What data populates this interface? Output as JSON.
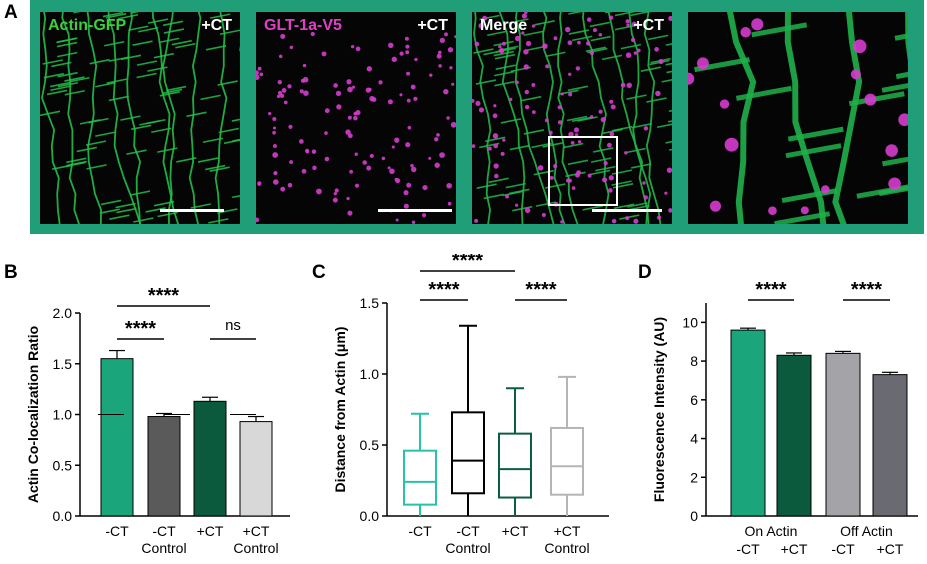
{
  "panels": {
    "A": "A",
    "B": "B",
    "C": "C",
    "D": "D"
  },
  "micrographs": [
    {
      "label": "Actin-GFP",
      "label_color": "#3ecf3e",
      "condition": "+CT"
    },
    {
      "label": "GLT-1a-V5",
      "label_color": "#e040c8",
      "condition": "+CT"
    },
    {
      "label": "Merge",
      "label_color": "#ffffff",
      "condition": "+CT"
    },
    {
      "label": "",
      "label_color": "#ffffff",
      "condition": ""
    }
  ],
  "colors": {
    "frame": "#1f9e78",
    "actin": "#22b04a",
    "glt": "#d63ccf",
    "teal": "#1aa57a",
    "darkgray": "#5a5a5a",
    "darkgreen": "#0b5a3e",
    "lightgray": "#d8d8d8",
    "midgray": "#a3a3a8",
    "slate": "#6a6a72",
    "cyan": "#27c2a8",
    "dkteal": "#0b5e45",
    "lgray": "#b5b5b5"
  },
  "chart_data": [
    {
      "type": "bar",
      "ylabel": "Actin Co-localization Ratio",
      "ylim": [
        0,
        2.0
      ],
      "yticks": [
        "0.0",
        "0.5",
        "1.0",
        "1.5",
        "2.0"
      ],
      "categories": [
        [
          "-CT",
          ""
        ],
        [
          "-CT",
          "Control"
        ],
        [
          "+CT",
          ""
        ],
        [
          "+CT",
          "Control"
        ]
      ],
      "values": [
        1.55,
        0.98,
        1.13,
        0.93
      ],
      "errors": [
        0.08,
        0.03,
        0.04,
        0.05
      ],
      "reference_line": 1.0,
      "significance": [
        {
          "from": 0,
          "to": 2,
          "label": "****"
        },
        {
          "from": 0,
          "to": 1,
          "label": "****"
        },
        {
          "from": 2,
          "to": 3,
          "label": "ns"
        }
      ]
    },
    {
      "type": "box",
      "ylabel": "Distance from Actin (μm)",
      "ylim": [
        0,
        1.5
      ],
      "yticks": [
        "0.0",
        "0.5",
        "1.0",
        "1.5"
      ],
      "categories": [
        [
          "-CT",
          ""
        ],
        [
          "-CT",
          "Control"
        ],
        [
          "+CT",
          ""
        ],
        [
          "+CT",
          "Control"
        ]
      ],
      "boxes": [
        {
          "min": 0.0,
          "q1": 0.08,
          "median": 0.24,
          "q3": 0.46,
          "max": 0.72
        },
        {
          "min": 0.0,
          "q1": 0.16,
          "median": 0.39,
          "q3": 0.73,
          "max": 1.34
        },
        {
          "min": 0.0,
          "q1": 0.13,
          "median": 0.33,
          "q3": 0.58,
          "max": 0.9
        },
        {
          "min": 0.0,
          "q1": 0.15,
          "median": 0.35,
          "q3": 0.62,
          "max": 0.98
        }
      ],
      "significance": [
        {
          "from": 0,
          "to": 2,
          "label": "****"
        },
        {
          "from": 0,
          "to": 1,
          "label": "****"
        },
        {
          "from": 2,
          "to": 3,
          "label": "****"
        }
      ]
    },
    {
      "type": "bar",
      "ylabel": "Fluorescence Intensity (AU)",
      "ylim": [
        0,
        11
      ],
      "yticks": [
        "0",
        "2",
        "4",
        "6",
        "8",
        "10"
      ],
      "group_labels": [
        "On Actin",
        "Off Actin"
      ],
      "categories": [
        [
          "-CT"
        ],
        [
          "+CT"
        ],
        [
          "-CT"
        ],
        [
          "+CT"
        ]
      ],
      "values": [
        9.6,
        8.3,
        8.4,
        7.3
      ],
      "errors": [
        0.1,
        0.12,
        0.1,
        0.12
      ],
      "significance": [
        {
          "from": 0,
          "to": 1,
          "label": "****"
        },
        {
          "from": 2,
          "to": 3,
          "label": "****"
        }
      ]
    }
  ]
}
